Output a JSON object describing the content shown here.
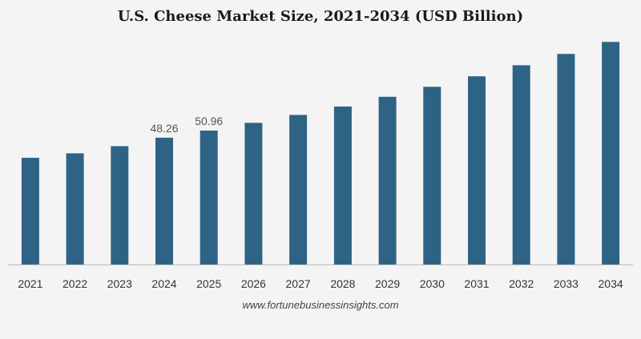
{
  "chart_data": {
    "type": "bar",
    "title": "U.S. Cheese Market Size, 2021-2034 (USD Billion)",
    "xlabel": "",
    "ylabel": "",
    "categories": [
      "2021",
      "2022",
      "2023",
      "2024",
      "2025",
      "2026",
      "2027",
      "2028",
      "2029",
      "2030",
      "2031",
      "2032",
      "2033",
      "2034"
    ],
    "values": [
      40.6,
      42.3,
      45.0,
      48.26,
      50.96,
      53.9,
      56.9,
      60.1,
      63.8,
      67.6,
      71.6,
      75.8,
      80.1,
      84.7
    ],
    "data_labels": [
      {
        "category": "2024",
        "text": "48.26"
      },
      {
        "category": "2025",
        "text": "50.96"
      }
    ],
    "ylim": [
      0,
      86
    ],
    "grid": false,
    "legend": "none",
    "bar_color": "#2e6385"
  },
  "source": "www.fortunebusinessinsights.com",
  "colors": {
    "background": "#f4f4f4",
    "axis": "#bbbbbb",
    "bar": "#2e6385"
  }
}
